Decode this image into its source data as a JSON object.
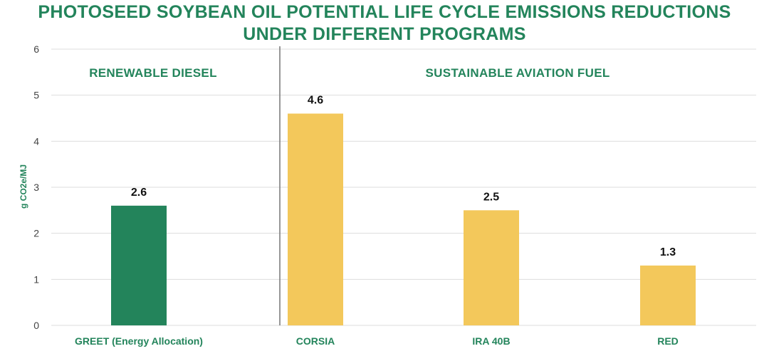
{
  "chart_data": {
    "type": "bar",
    "title_lines": [
      "PHOTOSEED SOYBEAN OIL POTENTIAL LIFE CYCLE EMISSIONS REDUCTIONS",
      "UNDER DIFFERENT PROGRAMS"
    ],
    "ylabel": "g CO2e/MJ",
    "ylim": [
      0,
      6
    ],
    "yticks": [
      0,
      1,
      2,
      3,
      4,
      5,
      6
    ],
    "grid": true,
    "categories": [
      "GREET (Energy Allocation)",
      "CORSIA",
      "IRA 40B",
      "RED"
    ],
    "values": [
      2.6,
      4.6,
      2.5,
      1.3
    ],
    "data_labels": [
      "2.6",
      "4.6",
      "2.5",
      "1.3"
    ],
    "bar_groups": [
      "RENEWABLE DIESEL",
      "SUSTAINABLE AVIATION FUEL",
      "SUSTAINABLE AVIATION FUEL",
      "SUSTAINABLE AVIATION FUEL"
    ],
    "groups": [
      {
        "label": "RENEWABLE DIESEL",
        "color": "#23845b"
      },
      {
        "label": "SUSTAINABLE AVIATION FUEL",
        "color": "#f3c85b"
      }
    ]
  },
  "colors": {
    "title": "#23845b",
    "grid": "#dddddd",
    "divider": "#777777"
  }
}
